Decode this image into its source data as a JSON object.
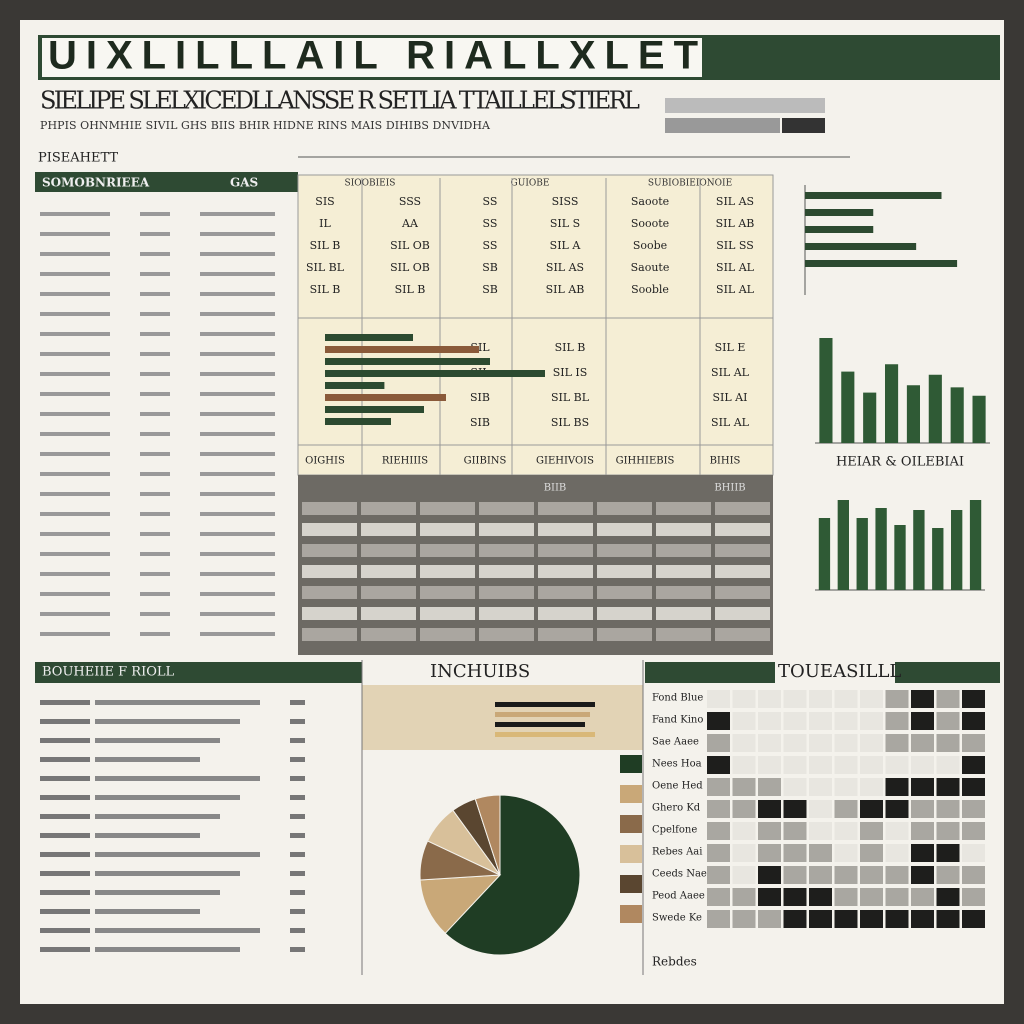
{
  "header": {
    "title": "UIXLILLLAIL RIALLXLET",
    "subtitle": "SIELIPE SLELXICEDLLANSSE R SETLIA TTAILLELSTIERL",
    "tagline": "PHPIS OHNMHIE SIVIL GHS BIIS BHIR HIDNE RINS MAIS DIHIBS DNVIDHA"
  },
  "sections": {
    "left_label": "PISEAHETT",
    "left_header": "SOMOBNRIEEA",
    "left_header_right": "GAS",
    "bottom_left": "BOUHEIIE F RIOLL",
    "bottom_mid": "INCHUIBS",
    "bottom_right": "TOUEASILLL",
    "footer": "Rebdes"
  },
  "table": {
    "headers": [
      "SIOOBIEIS",
      "GUIOBE",
      "SUBIOBIEIONOIE"
    ],
    "rows": [
      [
        "SIS",
        "SSS",
        "SS",
        "SISS",
        "Saoote",
        "SIL AS"
      ],
      [
        "IL",
        "AA",
        "SS",
        "SIL S",
        "Sooote",
        "SIL AB"
      ],
      [
        "SIL B",
        "SIL OB",
        "SS",
        "SIL A",
        "Soobe",
        "SIL SS"
      ],
      [
        "SIL BL",
        "SIL OB",
        "SB",
        "SIL AS",
        "Saoute",
        "SIL AL"
      ],
      [
        "SIL B",
        "SIL B",
        "SB",
        "SIL AB",
        "Sooble",
        "SIL AL"
      ]
    ],
    "lower_rows": [
      [
        "SIL",
        "SIL B",
        "SIL E"
      ],
      [
        "SIL",
        "SIL IS",
        "SIL AL"
      ],
      [
        "SIB",
        "SIL BL",
        "SIL AI"
      ],
      [
        "SIB",
        "SIL BS",
        "SIL AL"
      ]
    ],
    "footer_labels": [
      "OIGHIS",
      "RIEHIIIS",
      "GIIBINS",
      "GIEHIVOIS",
      "GIHHIEBIS",
      "BIHIS"
    ],
    "dark_headers": [
      "BIIB",
      "BHIIB"
    ]
  },
  "charts": [
    {
      "type": "hbar",
      "values": [
        70,
        35,
        35,
        57,
        78
      ],
      "color": "#2c4a30",
      "xlim": [
        0,
        100
      ]
    },
    {
      "type": "hbar",
      "values": [
        40,
        70,
        75,
        100,
        27,
        55,
        45,
        30
      ],
      "colors": [
        "#2c4a30",
        "#8a5a3a",
        "#2c4a30",
        "#2c4a30",
        "#2c4a30",
        "#8a5a3a",
        "#2c4a30",
        "#2c4a30"
      ],
      "xlim": [
        0,
        100
      ]
    },
    {
      "type": "vbar",
      "values": [
        100,
        68,
        48,
        75,
        55,
        65,
        53,
        45
      ],
      "color": "#2f5a35",
      "ylim": [
        0,
        100
      ]
    },
    {
      "type": "vbar",
      "title": "HEIAR & OILEBIAI",
      "values": [
        72,
        90,
        72,
        82,
        65,
        80,
        62,
        80,
        90
      ],
      "color": "#2f5a35",
      "ylim": [
        0,
        100
      ]
    },
    {
      "type": "hbar",
      "values": [
        100,
        95,
        90,
        100
      ],
      "colors": [
        "#1a1a1a",
        "#c9a878",
        "#1a1a1a",
        "#d9b878"
      ],
      "xlim": [
        0,
        100
      ]
    },
    {
      "type": "pie",
      "values": [
        62,
        12,
        8,
        8,
        5,
        5
      ],
      "colors": [
        "#1f3d24",
        "#c9a878",
        "#8a6a4a",
        "#d8c09a",
        "#5a4630",
        "#b08860"
      ]
    },
    {
      "type": "heat",
      "row_labels": [
        "Fond Blue",
        "Fand Kino",
        "Sae Aaee",
        "Nees Hoa",
        "Oene Hed",
        "Ghero Kd",
        "Cpelfone",
        "Rebes Aai",
        "Ceeds Nae",
        "Peod Aaee",
        "Swede Ke"
      ],
      "values": [
        [
          0,
          0,
          0,
          0,
          0,
          0,
          0,
          1,
          2,
          1,
          2
        ],
        [
          2,
          0,
          0,
          0,
          0,
          0,
          0,
          1,
          2,
          1,
          2
        ],
        [
          1,
          0,
          0,
          0,
          0,
          0,
          0,
          1,
          1,
          1,
          1
        ],
        [
          2,
          0,
          0,
          0,
          0,
          0,
          0,
          0,
          0,
          0,
          2
        ],
        [
          1,
          1,
          1,
          0,
          0,
          0,
          0,
          2,
          2,
          2,
          2
        ],
        [
          1,
          1,
          2,
          2,
          0,
          1,
          2,
          2,
          1,
          1,
          1
        ],
        [
          1,
          0,
          1,
          1,
          0,
          0,
          1,
          0,
          1,
          1,
          1
        ],
        [
          1,
          0,
          1,
          1,
          1,
          0,
          1,
          0,
          2,
          2,
          0
        ],
        [
          1,
          0,
          2,
          1,
          1,
          1,
          1,
          1,
          2,
          1,
          1
        ],
        [
          1,
          1,
          2,
          2,
          2,
          1,
          1,
          1,
          1,
          2,
          1
        ],
        [
          1,
          1,
          1,
          2,
          2,
          2,
          2,
          2,
          2,
          2,
          2
        ]
      ]
    }
  ]
}
